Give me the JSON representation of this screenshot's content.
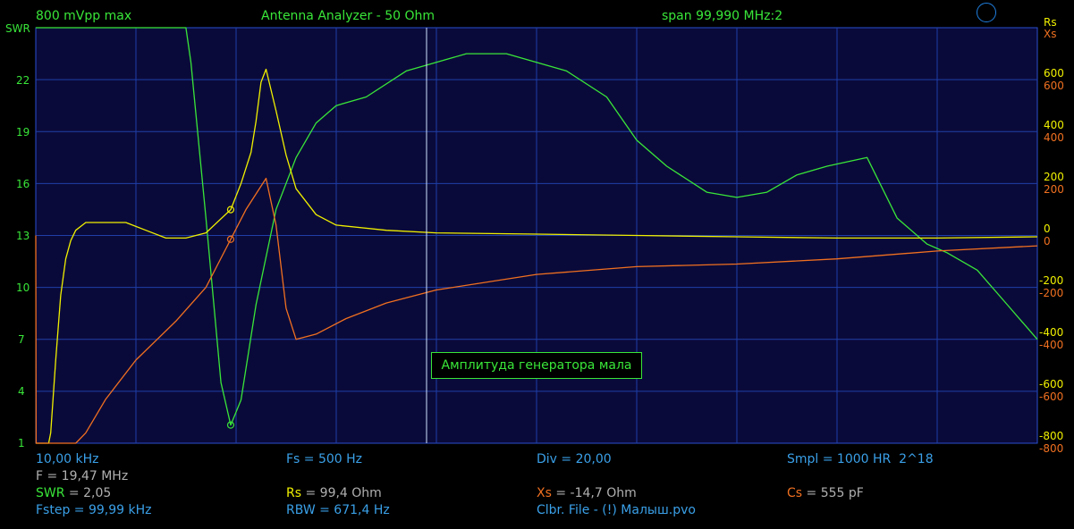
{
  "header": {
    "amplitude": "800 mVpp max",
    "title": "Antenna Analyzer - 50 Ohm",
    "span": "span 99,990 MHz:2"
  },
  "axes": {
    "left_label": "SWR",
    "right_label_rs": "Rs",
    "right_label_xs": "Xs",
    "left_ticks": [
      "22",
      "19",
      "16",
      "13",
      "10",
      "7",
      "4",
      "1"
    ],
    "right_ticks_rs": [
      "600",
      "400",
      "200",
      "0",
      "-200",
      "-400",
      "-600",
      "-800"
    ],
    "right_ticks_xs": [
      "600",
      "400",
      "200",
      "0",
      "-200",
      "-400",
      "-600",
      "-800"
    ]
  },
  "message": "Амплитуда генератора мала",
  "status": {
    "start_freq": "10,00 kHz",
    "fs": "Fs = 500 Hz",
    "div": "Div = 20,00",
    "smpl": "Smpl = 1000 HR  2^18",
    "marker_freq": "F = 19,47 MHz",
    "swr_label": "SWR",
    "swr_value": " = 2,05",
    "rs_label": "Rs",
    "rs_value": " = 99,4 Ohm",
    "xs_label": "Xs",
    "xs_value": " = -14,7 Ohm",
    "cs_label": "Cs",
    "cs_value": " = 555 pF",
    "fstep": "Fstep = 99,99 kHz",
    "rbw": "RBW = 671,4 Hz",
    "clbr": "Clbr. File - (!) Малыш.pvo"
  },
  "chart_data": {
    "type": "line",
    "x_unit": "MHz",
    "x_range": [
      0.01,
      100.0
    ],
    "cursor_x": 19.47,
    "y_left": {
      "label": "SWR",
      "ylim": [
        1,
        25
      ]
    },
    "y_right": {
      "label": "Rs / Xs",
      "ylim": [
        -800,
        800
      ]
    },
    "series": [
      {
        "name": "SWR",
        "color": "#39e639",
        "axis": "left",
        "x": [
          0.01,
          15.0,
          15.5,
          17.0,
          18.5,
          19.47,
          20.5,
          22.0,
          24.0,
          26.0,
          28.0,
          30.0,
          33.0,
          37.0,
          40.0,
          43.0,
          47.0,
          50.0,
          53.0,
          57.0,
          60.0,
          63.0,
          67.0,
          70.0,
          73.0,
          76.0,
          79.0,
          83.0,
          86.0,
          89.0,
          91.0,
          94.0,
          97.0,
          100.0
        ],
        "y": [
          25,
          25,
          23,
          14,
          4.5,
          2.05,
          3.5,
          9,
          14.5,
          17.5,
          19.5,
          20.5,
          21,
          22.5,
          23,
          23.5,
          23.5,
          23,
          22.5,
          21,
          18.5,
          17,
          15.5,
          15.2,
          15.5,
          16.5,
          17,
          17.5,
          14,
          12.5,
          12,
          11,
          9,
          7
        ]
      },
      {
        "name": "Rs",
        "color": "#f0f000",
        "axis": "right",
        "x": [
          0.01,
          1.3,
          1.5,
          2.0,
          2.5,
          3.0,
          3.5,
          4.0,
          5.0,
          7.0,
          9.0,
          11.0,
          13.0,
          15.0,
          17.0,
          19.47,
          20.5,
          21.5,
          22.0,
          22.5,
          23.0,
          24.0,
          25.0,
          26.0,
          28.0,
          30.0,
          35.0,
          40.0,
          50.0,
          60.0,
          70.0,
          80.0,
          90.0,
          100.0
        ],
        "y": [
          -800,
          -800,
          -760,
          -480,
          -230,
          -90,
          -20,
          20,
          50,
          50,
          50,
          20,
          -10,
          -10,
          10,
          99.4,
          200,
          320,
          440,
          590,
          640,
          480,
          310,
          180,
          80,
          40,
          20,
          10,
          5,
          0,
          -5,
          -10,
          -10,
          -5
        ]
      },
      {
        "name": "Xs",
        "color": "#f07020",
        "axis": "right",
        "x": [
          0.01,
          0.05,
          0.1,
          4.0,
          5.0,
          7.0,
          10.0,
          14.0,
          17.0,
          19.47,
          21.0,
          23.0,
          24.0,
          25.0,
          26.0,
          28.0,
          31.0,
          35.0,
          40.0,
          50.0,
          60.0,
          70.0,
          80.0,
          90.0,
          100.0
        ],
        "y": [
          0,
          -800,
          -800,
          -800,
          -760,
          -630,
          -480,
          -330,
          -200,
          -14.7,
          100,
          220,
          40,
          -280,
          -400,
          -380,
          -320,
          -260,
          -210,
          -150,
          -120,
          -110,
          -90,
          -60,
          -40
        ]
      }
    ]
  }
}
